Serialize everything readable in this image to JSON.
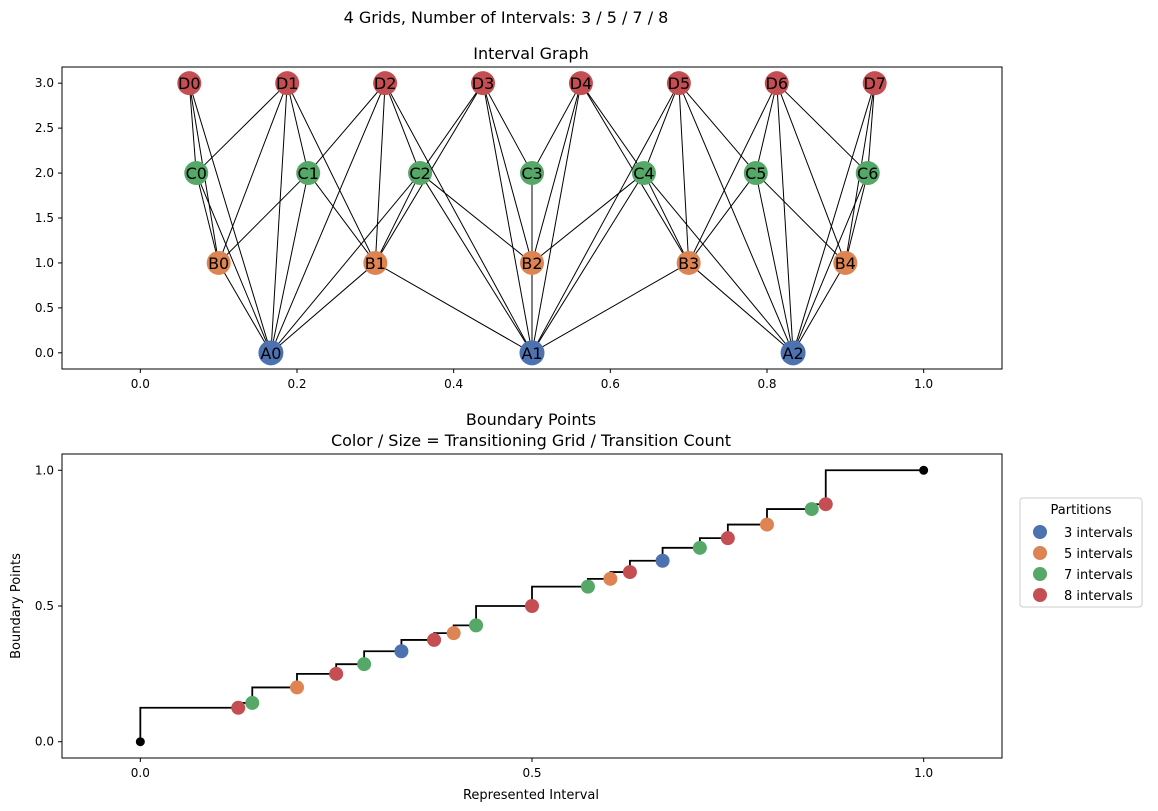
{
  "suptitle": "4 Grids, Number of Intervals: 3 / 5 / 7 / 8",
  "colors": {
    "A": "#4c72b0",
    "B": "#dd8452",
    "C": "#55a868",
    "D": "#c44e52",
    "edge": "#000000",
    "step": "#000000",
    "endpoint": "#000000"
  },
  "chart_data": [
    {
      "type": "network",
      "title": "Interval Graph",
      "xlim": [
        -0.1,
        1.1
      ],
      "ylim": [
        -0.18,
        3.18
      ],
      "xticks": [
        0.0,
        0.2,
        0.4,
        0.6,
        0.8,
        1.0
      ],
      "xtick_labels": [
        "0.0",
        "0.2",
        "0.4",
        "0.6",
        "0.8",
        "1.0"
      ],
      "yticks": [
        0.0,
        0.5,
        1.0,
        1.5,
        2.0,
        2.5,
        3.0
      ],
      "ytick_labels": [
        "0.0",
        "0.5",
        "1.0",
        "1.5",
        "2.0",
        "2.5",
        "3.0"
      ],
      "nodes": [
        {
          "id": "A0",
          "grid": "A",
          "x": 0.1667,
          "y": 0
        },
        {
          "id": "A1",
          "grid": "A",
          "x": 0.5,
          "y": 0
        },
        {
          "id": "A2",
          "grid": "A",
          "x": 0.8333,
          "y": 0
        },
        {
          "id": "B0",
          "grid": "B",
          "x": 0.1,
          "y": 1
        },
        {
          "id": "B1",
          "grid": "B",
          "x": 0.3,
          "y": 1
        },
        {
          "id": "B2",
          "grid": "B",
          "x": 0.5,
          "y": 1
        },
        {
          "id": "B3",
          "grid": "B",
          "x": 0.7,
          "y": 1
        },
        {
          "id": "B4",
          "grid": "B",
          "x": 0.9,
          "y": 1
        },
        {
          "id": "C0",
          "grid": "C",
          "x": 0.0714,
          "y": 2
        },
        {
          "id": "C1",
          "grid": "C",
          "x": 0.2143,
          "y": 2
        },
        {
          "id": "C2",
          "grid": "C",
          "x": 0.3571,
          "y": 2
        },
        {
          "id": "C3",
          "grid": "C",
          "x": 0.5,
          "y": 2
        },
        {
          "id": "C4",
          "grid": "C",
          "x": 0.6429,
          "y": 2
        },
        {
          "id": "C5",
          "grid": "C",
          "x": 0.7857,
          "y": 2
        },
        {
          "id": "C6",
          "grid": "C",
          "x": 0.9286,
          "y": 2
        },
        {
          "id": "D0",
          "grid": "D",
          "x": 0.0625,
          "y": 3
        },
        {
          "id": "D1",
          "grid": "D",
          "x": 0.1875,
          "y": 3
        },
        {
          "id": "D2",
          "grid": "D",
          "x": 0.3125,
          "y": 3
        },
        {
          "id": "D3",
          "grid": "D",
          "x": 0.4375,
          "y": 3
        },
        {
          "id": "D4",
          "grid": "D",
          "x": 0.5625,
          "y": 3
        },
        {
          "id": "D5",
          "grid": "D",
          "x": 0.6875,
          "y": 3
        },
        {
          "id": "D6",
          "grid": "D",
          "x": 0.8125,
          "y": 3
        },
        {
          "id": "D7",
          "grid": "D",
          "x": 0.9375,
          "y": 3
        }
      ]
    },
    {
      "type": "step-scatter",
      "title": "Boundary Points",
      "subtitle": "Color / Size = Transitioning Grid / Transition Count",
      "xlabel": "Represented Interval",
      "ylabel": "Boundary Points",
      "xlim": [
        -0.1,
        1.1
      ],
      "ylim": [
        -0.06,
        1.06
      ],
      "xticks": [
        0.0,
        0.5,
        1.0
      ],
      "xtick_labels": [
        "0.0",
        "0.5",
        "1.0"
      ],
      "yticks": [
        0.0,
        0.5,
        1.0
      ],
      "ytick_labels": [
        "0.0",
        "0.5",
        "1.0"
      ],
      "legend": {
        "title": "Partitions",
        "placement": "right-outside",
        "entries": [
          {
            "label": "3 intervals",
            "grid": "A"
          },
          {
            "label": "5 intervals",
            "grid": "B"
          },
          {
            "label": "7 intervals",
            "grid": "C"
          },
          {
            "label": "8 intervals",
            "grid": "D"
          }
        ]
      },
      "points": [
        {
          "x": 0.125,
          "y": 0.125,
          "grid": "D"
        },
        {
          "x": 0.1429,
          "y": 0.1429,
          "grid": "C"
        },
        {
          "x": 0.2,
          "y": 0.2,
          "grid": "B"
        },
        {
          "x": 0.25,
          "y": 0.25,
          "grid": "D"
        },
        {
          "x": 0.2857,
          "y": 0.2857,
          "grid": "C"
        },
        {
          "x": 0.3333,
          "y": 0.3333,
          "grid": "A"
        },
        {
          "x": 0.375,
          "y": 0.375,
          "grid": "D"
        },
        {
          "x": 0.4,
          "y": 0.4,
          "grid": "B"
        },
        {
          "x": 0.4286,
          "y": 0.4286,
          "grid": "C"
        },
        {
          "x": 0.5,
          "y": 0.5,
          "grid": "D"
        },
        {
          "x": 0.5714,
          "y": 0.5714,
          "grid": "C"
        },
        {
          "x": 0.6,
          "y": 0.6,
          "grid": "B"
        },
        {
          "x": 0.625,
          "y": 0.625,
          "grid": "D"
        },
        {
          "x": 0.6667,
          "y": 0.6667,
          "grid": "A"
        },
        {
          "x": 0.7143,
          "y": 0.7143,
          "grid": "C"
        },
        {
          "x": 0.75,
          "y": 0.75,
          "grid": "D"
        },
        {
          "x": 0.8,
          "y": 0.8,
          "grid": "B"
        },
        {
          "x": 0.8571,
          "y": 0.8571,
          "grid": "C"
        },
        {
          "x": 0.875,
          "y": 0.875,
          "grid": "D"
        }
      ],
      "endpoints": [
        {
          "x": 0.0,
          "y": 0.0
        },
        {
          "x": 1.0,
          "y": 1.0
        }
      ]
    }
  ]
}
